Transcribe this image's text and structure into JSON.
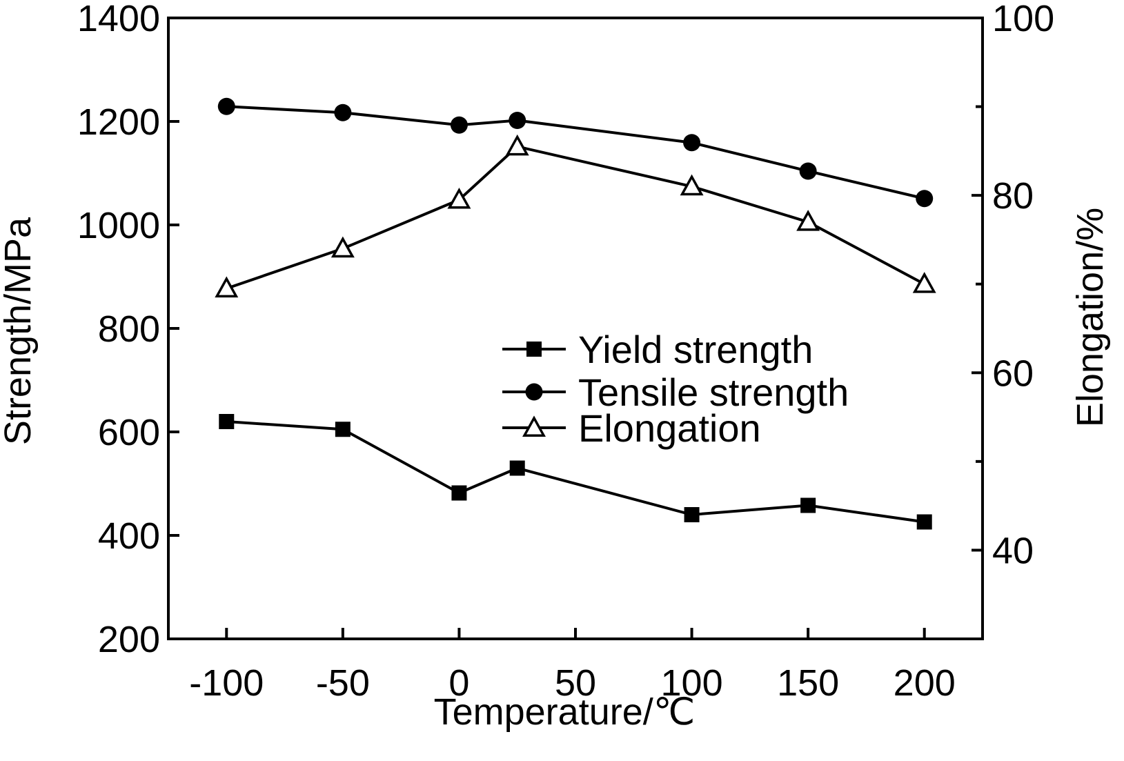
{
  "chart_data": {
    "type": "line",
    "title": "",
    "xlabel": "Temperature/℃",
    "ylabel_left": "Strength/MPa",
    "ylabel_right": "Elongation/%",
    "xlim": [
      -125,
      225
    ],
    "ylim_left": [
      200,
      1400
    ],
    "ylim_right": [
      30,
      100
    ],
    "x_ticks": [
      -100,
      -50,
      0,
      50,
      100,
      150,
      200
    ],
    "y_left_ticks": [
      200,
      400,
      600,
      800,
      1000,
      1200,
      1400
    ],
    "y_right_ticks": [
      40,
      60,
      80,
      100
    ],
    "y_right_minor_ticks": [
      50,
      70,
      90
    ],
    "grid": false,
    "legend_position": "center-right",
    "series": [
      {
        "name": "Yield strength",
        "axis": "left",
        "marker": "square",
        "x": [
          -100,
          -50,
          0,
          25,
          100,
          150,
          200
        ],
        "y": [
          620,
          605,
          482,
          530,
          440,
          458,
          426
        ]
      },
      {
        "name": "Tensile strength",
        "axis": "left",
        "marker": "circle",
        "x": [
          -100,
          -50,
          0,
          25,
          100,
          150,
          200
        ],
        "y": [
          1229,
          1217,
          1193,
          1202,
          1159,
          1104,
          1051
        ]
      },
      {
        "name": "Elongation",
        "axis": "right",
        "marker": "triangle-open",
        "x": [
          -100,
          -50,
          0,
          25,
          100,
          150,
          200
        ],
        "y": [
          69.5,
          74,
          79.5,
          85.5,
          81,
          77,
          70
        ]
      }
    ]
  }
}
